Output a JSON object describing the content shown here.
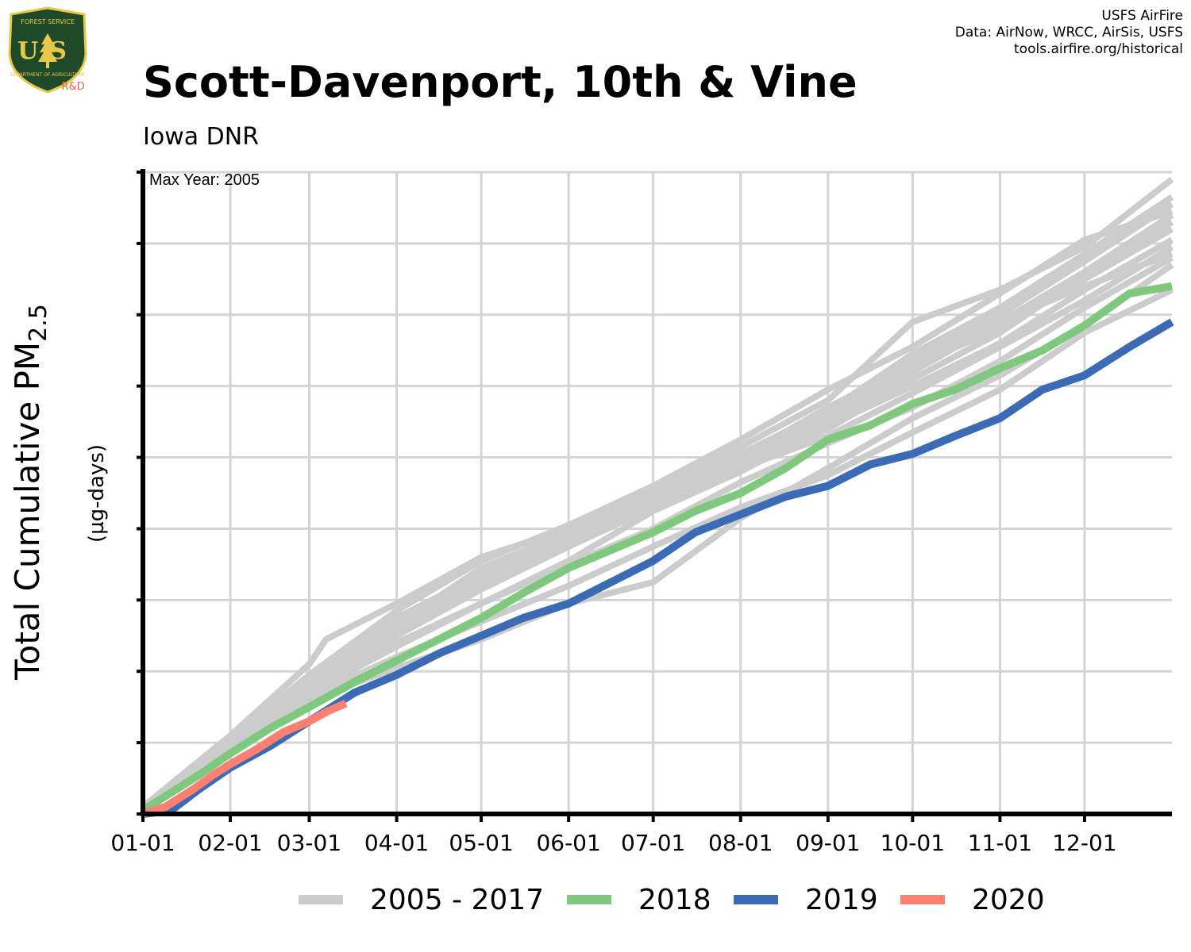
{
  "header": {
    "title": "Scott-Davenport, 10th & Vine",
    "subtitle": "Iowa DNR",
    "credits": [
      "USFS AirFire",
      "Data: AirNow, WRCC, AirSis, USFS",
      "tools.airfire.org/historical"
    ],
    "logo_text": {
      "top": "FOREST SERVICE",
      "main": "US",
      "bottom": "DEPARTMENT OF AGRICULTURE",
      "tag": "R&D"
    }
  },
  "colors": {
    "historical": "#cccccc",
    "y2018": "#7fc97f",
    "y2019": "#3b6bb5",
    "y2020": "#fb8072",
    "logo_green": "#1f4a2a",
    "logo_gold": "#e7c84a",
    "logo_tag": "#e8634a"
  },
  "chart_data": {
    "type": "line",
    "title": "Scott-Davenport, 10th & Vine",
    "subtitle": "Iowa DNR",
    "annotation": "Max Year: 2005",
    "ylabel_main": "Total Cumulative PM",
    "ylabel_sub": "2.5",
    "ylabel_units": "(µg-days)",
    "xlabel": "",
    "x_ticks": [
      "01-01",
      "02-01",
      "03-01",
      "04-01",
      "05-01",
      "06-01",
      "07-01",
      "08-01",
      "09-01",
      "10-01",
      "11-01",
      "12-01"
    ],
    "x_tick_days": [
      0,
      31,
      59,
      90,
      120,
      151,
      181,
      212,
      243,
      273,
      304,
      334
    ],
    "xlim": [
      0,
      365
    ],
    "ylim": [
      0,
      9
    ],
    "y_tick_labels_shown": false,
    "grid": true,
    "legend_position": "bottom",
    "legend": [
      "2005 - 2017",
      "2018",
      "2019",
      "2020"
    ],
    "series": [
      {
        "group": "historical",
        "points": [
          [
            0,
            0.1
          ],
          [
            31,
            1.1
          ],
          [
            59,
            2.1
          ],
          [
            65,
            2.45
          ],
          [
            90,
            2.95
          ],
          [
            120,
            3.6
          ],
          [
            151,
            4.0
          ],
          [
            181,
            4.55
          ],
          [
            212,
            5.15
          ],
          [
            243,
            5.8
          ],
          [
            273,
            6.9
          ],
          [
            304,
            7.35
          ],
          [
            334,
            7.95
          ],
          [
            365,
            8.9
          ]
        ]
      },
      {
        "group": "historical",
        "points": [
          [
            0,
            0.1
          ],
          [
            31,
            0.95
          ],
          [
            59,
            1.75
          ],
          [
            90,
            2.5
          ],
          [
            120,
            3.2
          ],
          [
            151,
            3.85
          ],
          [
            181,
            4.5
          ],
          [
            212,
            5.0
          ],
          [
            243,
            5.7
          ],
          [
            273,
            6.3
          ],
          [
            304,
            6.8
          ],
          [
            334,
            7.5
          ],
          [
            365,
            8.2
          ]
        ]
      },
      {
        "group": "historical",
        "points": [
          [
            0,
            0.1
          ],
          [
            31,
            1.0
          ],
          [
            59,
            1.9
          ],
          [
            90,
            2.65
          ],
          [
            120,
            3.45
          ],
          [
            151,
            3.95
          ],
          [
            181,
            4.45
          ],
          [
            212,
            5.05
          ],
          [
            243,
            5.6
          ],
          [
            273,
            6.35
          ],
          [
            304,
            7.0
          ],
          [
            334,
            7.75
          ],
          [
            365,
            8.55
          ]
        ]
      },
      {
        "group": "historical",
        "points": [
          [
            0,
            0.1
          ],
          [
            31,
            0.9
          ],
          [
            59,
            1.7
          ],
          [
            90,
            2.35
          ],
          [
            120,
            2.95
          ],
          [
            151,
            3.55
          ],
          [
            181,
            4.25
          ],
          [
            212,
            4.8
          ],
          [
            243,
            5.45
          ],
          [
            273,
            6.0
          ],
          [
            304,
            6.6
          ],
          [
            334,
            7.35
          ],
          [
            365,
            8.05
          ]
        ]
      },
      {
        "group": "historical",
        "points": [
          [
            0,
            0.1
          ],
          [
            31,
            0.85
          ],
          [
            59,
            1.6
          ],
          [
            90,
            2.05
          ],
          [
            120,
            2.45
          ],
          [
            151,
            2.95
          ],
          [
            181,
            3.25
          ],
          [
            212,
            4.15
          ],
          [
            243,
            4.85
          ],
          [
            273,
            5.55
          ],
          [
            304,
            6.15
          ],
          [
            334,
            6.85
          ],
          [
            365,
            7.7
          ]
        ]
      },
      {
        "group": "historical",
        "points": [
          [
            0,
            0.1
          ],
          [
            31,
            1.05
          ],
          [
            59,
            1.95
          ],
          [
            90,
            2.85
          ],
          [
            120,
            3.55
          ],
          [
            151,
            4.05
          ],
          [
            181,
            4.6
          ],
          [
            212,
            5.25
          ],
          [
            243,
            5.95
          ],
          [
            273,
            6.55
          ],
          [
            304,
            7.3
          ],
          [
            334,
            8.05
          ],
          [
            365,
            8.45
          ]
        ]
      },
      {
        "group": "historical",
        "points": [
          [
            0,
            0.1
          ],
          [
            31,
            0.95
          ],
          [
            59,
            1.85
          ],
          [
            90,
            2.6
          ],
          [
            120,
            3.3
          ],
          [
            151,
            3.9
          ],
          [
            181,
            4.35
          ],
          [
            212,
            4.9
          ],
          [
            243,
            5.4
          ],
          [
            273,
            6.1
          ],
          [
            304,
            6.75
          ],
          [
            334,
            7.55
          ],
          [
            365,
            8.3
          ]
        ]
      },
      {
        "group": "historical",
        "points": [
          [
            0,
            0.1
          ],
          [
            31,
            0.9
          ],
          [
            59,
            1.65
          ],
          [
            90,
            2.2
          ],
          [
            120,
            2.7
          ],
          [
            151,
            3.2
          ],
          [
            181,
            3.75
          ],
          [
            212,
            4.3
          ],
          [
            243,
            4.75
          ],
          [
            273,
            5.35
          ],
          [
            304,
            5.95
          ],
          [
            334,
            6.75
          ],
          [
            365,
            7.35
          ]
        ]
      },
      {
        "group": "historical",
        "points": [
          [
            0,
            0.1
          ],
          [
            31,
            1.0
          ],
          [
            59,
            1.85
          ],
          [
            90,
            2.7
          ],
          [
            120,
            3.4
          ],
          [
            151,
            4.0
          ],
          [
            181,
            4.55
          ],
          [
            212,
            5.05
          ],
          [
            243,
            5.65
          ],
          [
            273,
            6.45
          ],
          [
            304,
            7.1
          ],
          [
            334,
            7.85
          ],
          [
            365,
            8.65
          ]
        ]
      },
      {
        "group": "historical",
        "points": [
          [
            0,
            0.1
          ],
          [
            31,
            0.95
          ],
          [
            59,
            1.8
          ],
          [
            90,
            2.5
          ],
          [
            120,
            3.15
          ],
          [
            151,
            3.75
          ],
          [
            181,
            4.3
          ],
          [
            212,
            4.85
          ],
          [
            243,
            5.3
          ],
          [
            273,
            5.9
          ],
          [
            304,
            6.55
          ],
          [
            334,
            7.2
          ],
          [
            365,
            7.95
          ]
        ]
      },
      {
        "group": "historical",
        "points": [
          [
            0,
            0.1
          ],
          [
            31,
            0.9
          ],
          [
            59,
            1.75
          ],
          [
            90,
            2.4
          ],
          [
            120,
            2.95
          ],
          [
            151,
            3.5
          ],
          [
            181,
            4.0
          ],
          [
            212,
            4.65
          ],
          [
            243,
            5.2
          ],
          [
            273,
            5.7
          ],
          [
            304,
            6.35
          ],
          [
            334,
            7.1
          ],
          [
            365,
            7.8
          ]
        ]
      },
      {
        "group": "historical",
        "points": [
          [
            0,
            0.1
          ],
          [
            31,
            1.0
          ],
          [
            59,
            1.9
          ],
          [
            90,
            2.75
          ],
          [
            120,
            3.35
          ],
          [
            151,
            3.9
          ],
          [
            181,
            4.4
          ],
          [
            212,
            4.95
          ],
          [
            243,
            5.5
          ],
          [
            273,
            6.2
          ],
          [
            304,
            6.9
          ],
          [
            334,
            7.6
          ],
          [
            365,
            8.4
          ]
        ]
      },
      {
        "group": "historical",
        "points": [
          [
            0,
            0.1
          ],
          [
            31,
            0.95
          ],
          [
            59,
            1.75
          ],
          [
            90,
            2.55
          ],
          [
            120,
            3.25
          ],
          [
            151,
            3.8
          ],
          [
            181,
            4.35
          ],
          [
            212,
            4.9
          ],
          [
            243,
            5.55
          ],
          [
            273,
            6.25
          ],
          [
            304,
            6.9
          ],
          [
            334,
            7.4
          ],
          [
            365,
            7.85
          ]
        ]
      },
      {
        "name": "2018",
        "group": "y2018",
        "points": [
          [
            0,
            0.05
          ],
          [
            20,
            0.55
          ],
          [
            31,
            0.85
          ],
          [
            45,
            1.2
          ],
          [
            59,
            1.5
          ],
          [
            75,
            1.85
          ],
          [
            90,
            2.15
          ],
          [
            105,
            2.45
          ],
          [
            120,
            2.75
          ],
          [
            135,
            3.1
          ],
          [
            151,
            3.45
          ],
          [
            166,
            3.7
          ],
          [
            181,
            3.95
          ],
          [
            196,
            4.25
          ],
          [
            212,
            4.5
          ],
          [
            228,
            4.85
          ],
          [
            243,
            5.25
          ],
          [
            258,
            5.45
          ],
          [
            273,
            5.75
          ],
          [
            288,
            5.95
          ],
          [
            304,
            6.25
          ],
          [
            319,
            6.5
          ],
          [
            334,
            6.85
          ],
          [
            350,
            7.3
          ],
          [
            365,
            7.4
          ]
        ]
      },
      {
        "name": "2019",
        "group": "y2019",
        "points": [
          [
            0,
            0.0
          ],
          [
            10,
            0.05
          ],
          [
            20,
            0.35
          ],
          [
            31,
            0.65
          ],
          [
            45,
            0.95
          ],
          [
            59,
            1.3
          ],
          [
            75,
            1.7
          ],
          [
            90,
            1.95
          ],
          [
            105,
            2.25
          ],
          [
            120,
            2.5
          ],
          [
            135,
            2.75
          ],
          [
            151,
            2.95
          ],
          [
            166,
            3.25
          ],
          [
            181,
            3.55
          ],
          [
            196,
            3.95
          ],
          [
            212,
            4.2
          ],
          [
            228,
            4.45
          ],
          [
            243,
            4.6
          ],
          [
            258,
            4.9
          ],
          [
            273,
            5.05
          ],
          [
            288,
            5.3
          ],
          [
            304,
            5.55
          ],
          [
            319,
            5.95
          ],
          [
            334,
            6.15
          ],
          [
            350,
            6.55
          ],
          [
            365,
            6.9
          ]
        ]
      },
      {
        "name": "2020",
        "group": "y2020",
        "points": [
          [
            0,
            0.0
          ],
          [
            8,
            0.1
          ],
          [
            18,
            0.35
          ],
          [
            25,
            0.55
          ],
          [
            31,
            0.7
          ],
          [
            40,
            0.9
          ],
          [
            50,
            1.15
          ],
          [
            59,
            1.3
          ],
          [
            66,
            1.45
          ],
          [
            72,
            1.55
          ]
        ]
      }
    ]
  },
  "legend": [
    {
      "label": "2005 - 2017",
      "key": "historical"
    },
    {
      "label": "2018",
      "key": "y2018"
    },
    {
      "label": "2019",
      "key": "y2019"
    },
    {
      "label": "2020",
      "key": "y2020"
    }
  ]
}
